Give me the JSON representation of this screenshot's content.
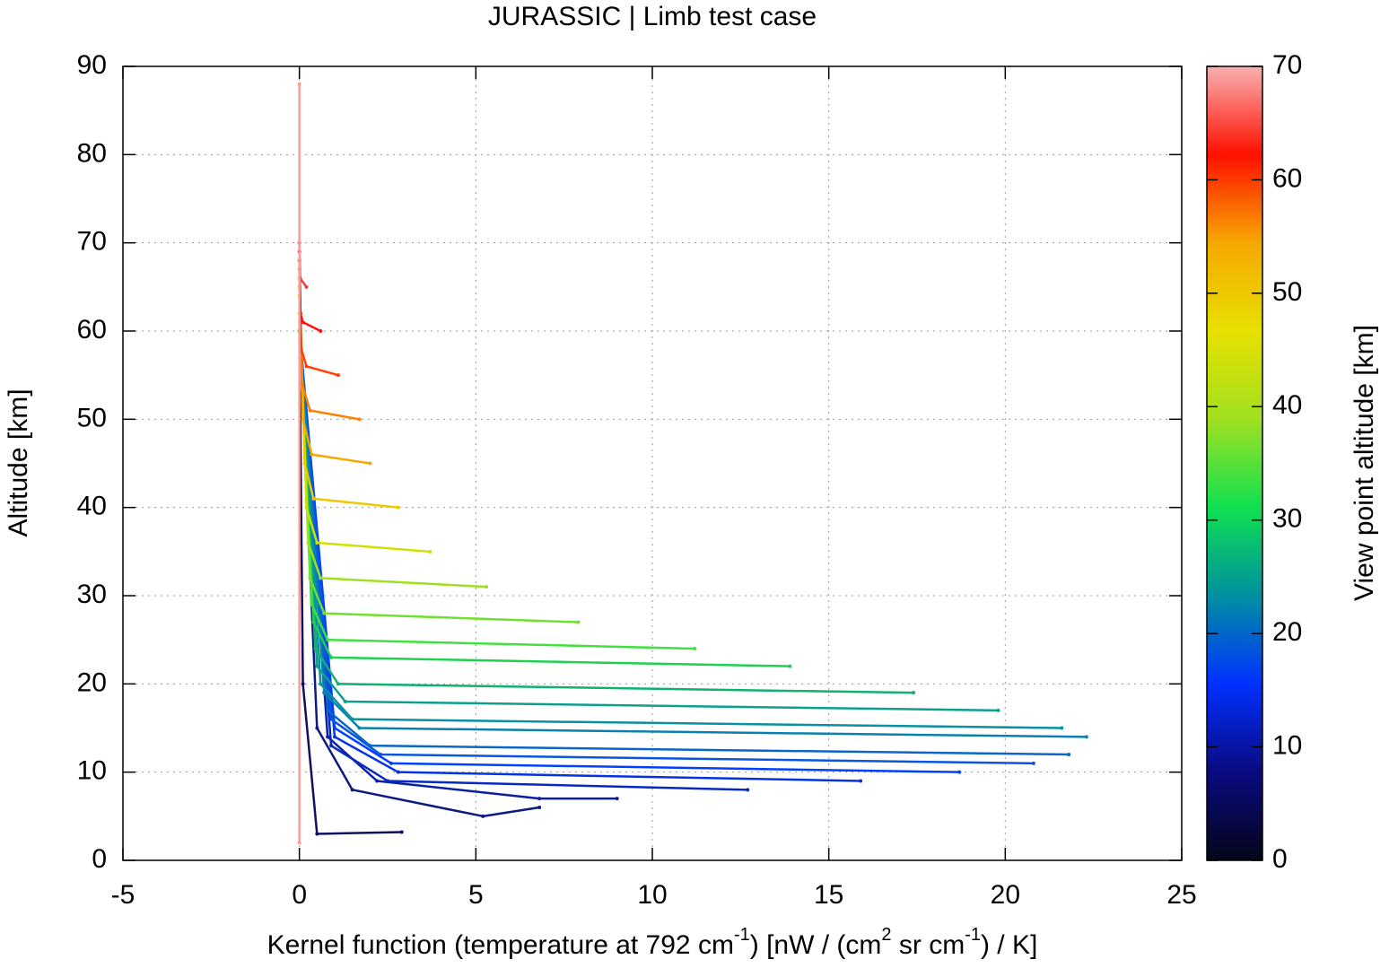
{
  "chart_data": {
    "type": "line",
    "title": "JURASSIC | Limb test case",
    "xlabel": [
      {
        "text": "Kernel function (temperature at 792 cm"
      },
      {
        "sup": "-1"
      },
      {
        "text": ") [nW / (cm"
      },
      {
        "sup": "2"
      },
      {
        "text": " sr cm"
      },
      {
        "sup": "-1"
      },
      {
        "text": ") / K]"
      }
    ],
    "ylabel": "Altitude [km]",
    "xlim": [
      -5,
      25
    ],
    "xticks": [
      -5,
      0,
      5,
      10,
      15,
      20,
      25
    ],
    "ylim": [
      0,
      90
    ],
    "yticks": [
      0,
      10,
      20,
      30,
      40,
      50,
      60,
      70,
      80,
      90
    ],
    "grid": true,
    "colorbar": {
      "label": "View point altitude [km]",
      "lim": [
        0,
        70
      ],
      "ticks": [
        0,
        10,
        20,
        30,
        40,
        50,
        60,
        70
      ],
      "colors": [
        "#05051a",
        "#0a0a80",
        "#0030ff",
        "#0090a0",
        "#10e050",
        "#a0e020",
        "#e8e000",
        "#f5a800",
        "#ff1000",
        "#f8b0b0"
      ]
    },
    "series": [
      {
        "color": "#101060",
        "x": [
          0,
          0.1,
          0.5,
          2.9
        ],
        "y": [
          60,
          20,
          3,
          3.2
        ]
      },
      {
        "color": "#0d1a80",
        "x": [
          0,
          0.5,
          1.5,
          5.2,
          6.8
        ],
        "y": [
          60,
          15,
          8,
          5,
          6
        ]
      },
      {
        "color": "#0a20a0",
        "x": [
          0,
          0.8,
          2.2,
          6.8,
          9.0
        ],
        "y": [
          60,
          14,
          9,
          7,
          7
        ]
      },
      {
        "color": "#0828c0",
        "x": [
          0,
          0.9,
          2.5,
          12.7
        ],
        "y": [
          60,
          13,
          9,
          8
        ]
      },
      {
        "color": "#0533e0",
        "x": [
          0,
          1.0,
          2.8,
          15.9
        ],
        "y": [
          60,
          14,
          10,
          9
        ]
      },
      {
        "color": "#0040ff",
        "x": [
          0,
          1.0,
          2.6,
          18.7
        ],
        "y": [
          60,
          15,
          11,
          10
        ]
      },
      {
        "color": "#0a55e0",
        "x": [
          0,
          0.9,
          2.3,
          20.8
        ],
        "y": [
          60,
          16,
          12,
          11
        ]
      },
      {
        "color": "#0a66c8",
        "x": [
          0,
          0.8,
          2.0,
          21.8
        ],
        "y": [
          60,
          17,
          13,
          12
        ]
      },
      {
        "color": "#0a80b0",
        "x": [
          0,
          0.7,
          1.7,
          22.3
        ],
        "y": [
          60,
          19,
          15,
          14
        ]
      },
      {
        "color": "#0a90a0",
        "x": [
          0,
          0.6,
          1.5,
          21.6
        ],
        "y": [
          60,
          20,
          16,
          15
        ]
      },
      {
        "color": "#0aa090",
        "x": [
          0,
          0.5,
          1.3,
          19.8
        ],
        "y": [
          60,
          22,
          18,
          17
        ]
      },
      {
        "color": "#10b070",
        "x": [
          0,
          0.45,
          1.1,
          17.4
        ],
        "y": [
          60,
          24,
          20,
          19
        ]
      },
      {
        "color": "#20d050",
        "x": [
          0,
          0.4,
          0.9,
          13.9
        ],
        "y": [
          60,
          27,
          23,
          22
        ]
      },
      {
        "color": "#40e040",
        "x": [
          0,
          0.35,
          0.8,
          11.2
        ],
        "y": [
          60,
          29,
          25,
          24
        ]
      },
      {
        "color": "#70e030",
        "x": [
          0,
          0.3,
          0.7,
          7.9
        ],
        "y": [
          60,
          32,
          28,
          27
        ]
      },
      {
        "color": "#a0e020",
        "x": [
          0,
          0.25,
          0.6,
          5.3
        ],
        "y": [
          62,
          36,
          32,
          31
        ]
      },
      {
        "color": "#d0e000",
        "x": [
          0,
          0.2,
          0.5,
          3.7
        ],
        "y": [
          64,
          40,
          36,
          35
        ]
      },
      {
        "color": "#f0c800",
        "x": [
          0,
          0.15,
          0.4,
          2.8
        ],
        "y": [
          65,
          45,
          41,
          40
        ]
      },
      {
        "color": "#f5a800",
        "x": [
          0,
          0.1,
          0.35,
          2.0
        ],
        "y": [
          66,
          50,
          46,
          45
        ]
      },
      {
        "color": "#ff8000",
        "x": [
          0,
          0.08,
          0.3,
          1.7
        ],
        "y": [
          67,
          54,
          51,
          50
        ]
      },
      {
        "color": "#ff4000",
        "x": [
          0,
          0.05,
          0.2,
          1.1
        ],
        "y": [
          68,
          58,
          56,
          55
        ]
      },
      {
        "color": "#ff1010",
        "x": [
          0,
          0.03,
          0.1,
          0.6
        ],
        "y": [
          69,
          62,
          61,
          60
        ]
      },
      {
        "color": "#f04040",
        "x": [
          0,
          0.02,
          0.2
        ],
        "y": [
          70,
          66,
          65
        ]
      },
      {
        "color": "#f4a0a0",
        "x": [
          0,
          0
        ],
        "y": [
          2,
          88
        ]
      }
    ]
  }
}
